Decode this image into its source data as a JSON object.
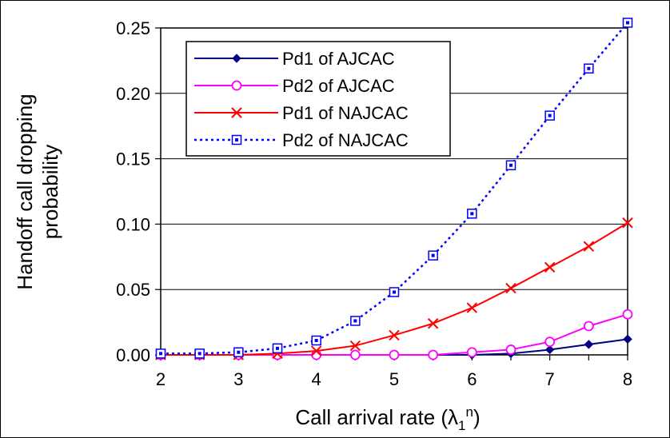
{
  "chart_data": {
    "type": "line",
    "xlabel": "Call arrival rate (λ",
    "xlabel_sub": "1",
    "xlabel_sup": "n",
    "xlabel_close": ")",
    "ylabel_line1": "Handoff call dropping",
    "ylabel_line2": "probability",
    "x": [
      2,
      2.5,
      3,
      3.5,
      4,
      4.5,
      5,
      5.5,
      6,
      6.5,
      7,
      7.5,
      8
    ],
    "xlim": [
      2,
      8
    ],
    "ylim": [
      0,
      0.25
    ],
    "xticks": [
      "2",
      "3",
      "4",
      "5",
      "6",
      "7",
      "8"
    ],
    "yticks": [
      "0.00",
      "0.05",
      "0.10",
      "0.15",
      "0.20",
      "0.25"
    ],
    "grid": "horizontal",
    "legend_position": "top-left",
    "series": [
      {
        "name": "Pd1 of AJCAC",
        "color": "#000080",
        "marker": "diamond",
        "dash": "solid",
        "values": [
          0,
          0,
          0,
          0,
          0,
          0,
          0,
          0,
          0,
          0.001,
          0.004,
          0.008,
          0.012
        ]
      },
      {
        "name": "Pd2 of AJCAC",
        "color": "#ff00ff",
        "marker": "circle",
        "dash": "solid",
        "values": [
          0,
          0,
          0,
          0,
          0,
          0,
          0,
          0,
          0.002,
          0.004,
          0.01,
          0.022,
          0.031
        ]
      },
      {
        "name": "Pd1 of NAJCAC",
        "color": "#ff0000",
        "marker": "cross",
        "dash": "solid",
        "values": [
          0,
          0,
          0,
          0.001,
          0.003,
          0.007,
          0.015,
          0.024,
          0.036,
          0.051,
          0.067,
          0.083,
          0.101
        ]
      },
      {
        "name": "Pd2 of NAJCAC",
        "color": "#0000ff",
        "marker": "square",
        "dash": "dotted",
        "values": [
          0.001,
          0.001,
          0.002,
          0.005,
          0.011,
          0.026,
          0.048,
          0.076,
          0.108,
          0.145,
          0.183,
          0.219,
          0.254
        ]
      }
    ]
  }
}
